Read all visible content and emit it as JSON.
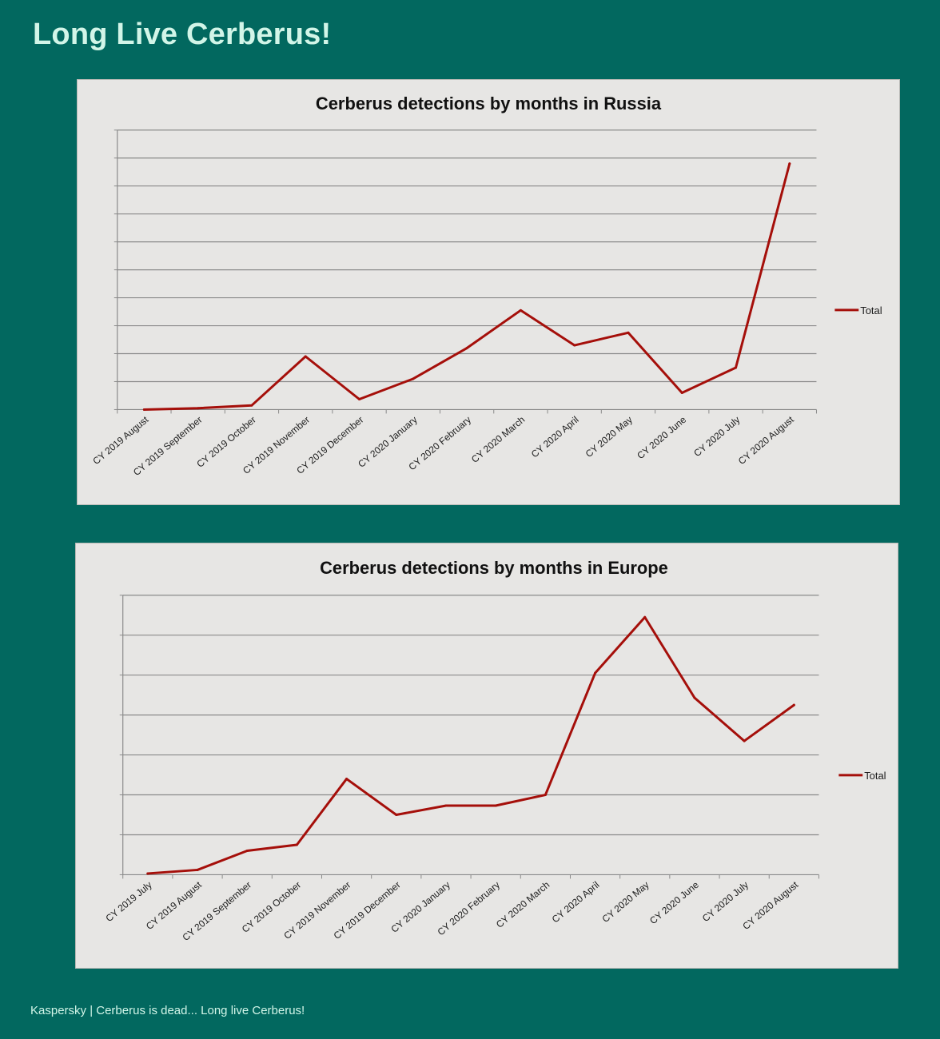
{
  "page": {
    "title": "Long Live Cerberus!",
    "footer": "Kaspersky | Cerberus is dead... Long live Cerberus!"
  },
  "colors": {
    "background": "#02685f",
    "title_text": "#d2f5e8",
    "panel": "#e7e6e4",
    "series": "#a50f0a"
  },
  "chart_data": [
    {
      "type": "line",
      "title": "Cerberus detections by months in Russia",
      "xlabel": "",
      "ylabel": "",
      "categories": [
        "CY 2019 August",
        "CY 2019 September",
        "CY 2019 October",
        "CY 2019 November",
        "CY 2019 December",
        "CY 2020 January",
        "CY 2020 February",
        "CY 2020 March",
        "CY 2020 April",
        "CY 2020 May",
        "CY 2020 June",
        "CY 2020 July",
        "CY 2020 August"
      ],
      "series": [
        {
          "name": "Total",
          "values": [
            0.0,
            0.05,
            0.15,
            1.9,
            0.37,
            1.1,
            2.2,
            3.55,
            2.3,
            2.75,
            0.6,
            1.5,
            8.8
          ]
        }
      ],
      "ylim": [
        0,
        10
      ],
      "y_gridlines": 10,
      "y_tick_labels_visible": false,
      "grid": true,
      "legend": "right"
    },
    {
      "type": "line",
      "title": "Cerberus detections by months in Europe",
      "xlabel": "",
      "ylabel": "",
      "categories": [
        "CY 2019 July",
        "CY 2019 August",
        "CY 2019 September",
        "CY 2019 October",
        "CY 2019 November",
        "CY 2019 December",
        "CY 2020 January",
        "CY 2020 February",
        "CY 2020 March",
        "CY 2020 April",
        "CY 2020 May",
        "CY 2020 June",
        "CY 2020 July",
        "CY 2020 August"
      ],
      "series": [
        {
          "name": "Total",
          "values": [
            0.03,
            0.12,
            0.6,
            0.75,
            2.4,
            1.5,
            1.73,
            1.73,
            2.0,
            5.05,
            6.45,
            4.43,
            3.35,
            4.25
          ]
        }
      ],
      "ylim": [
        0,
        7
      ],
      "y_gridlines": 7,
      "y_tick_labels_visible": false,
      "grid": true,
      "legend": "right"
    }
  ]
}
